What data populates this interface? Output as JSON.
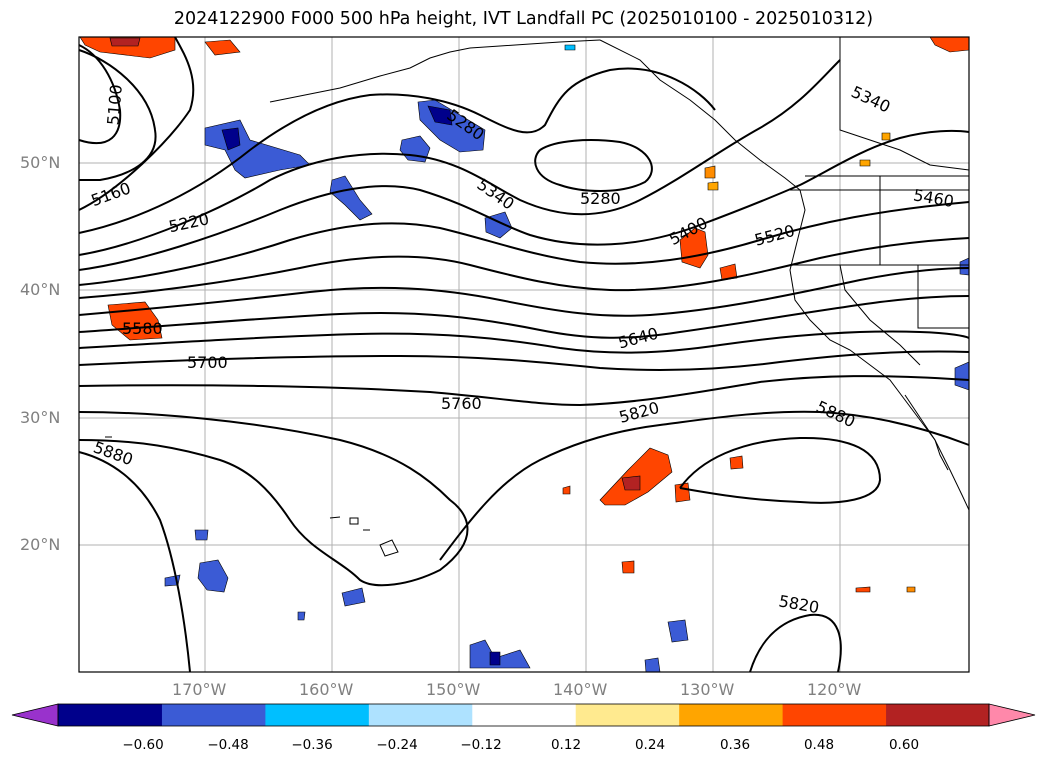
{
  "title": "2024122900 F000 500 hPa height, IVT Landfall PC (2025010100 - 2025010312)",
  "latitude_labels": [
    "50°N",
    "40°N",
    "30°N",
    "20°N"
  ],
  "longitude_labels": [
    "170°W",
    "160°W",
    "150°W",
    "140°W",
    "130°W",
    "120°W"
  ],
  "contour_labels": [
    "5100",
    "5160",
    "5220",
    "5280",
    "5340",
    "5280",
    "5400",
    "5520",
    "5340",
    "5460",
    "5580",
    "5700",
    "5640",
    "5760",
    "5820",
    "5880",
    "5880",
    "5820"
  ],
  "colorbar": {
    "ticks": [
      "−0.60",
      "−0.48",
      "−0.36",
      "−0.24",
      "−0.12",
      "0.12",
      "0.24",
      "0.36",
      "0.48",
      "0.60"
    ],
    "colors": [
      "#9932cc",
      "#00008b",
      "#3b5bd5",
      "#00bfff",
      "#aee2ff",
      "#ffffff",
      "#ffea8f",
      "#ffa500",
      "#ff4500",
      "#b22222",
      "#ff88aa"
    ]
  }
}
